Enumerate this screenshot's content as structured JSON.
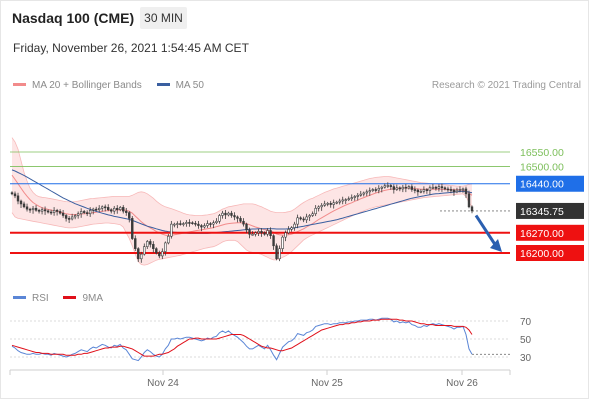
{
  "header": {
    "title": "Nasdaq 100 (CME)",
    "timeframe": "30 MIN",
    "datetime": "Friday, November 26, 2021 1:54:45 AM CET"
  },
  "legend_top": {
    "items": [
      {
        "label": "MA 20 + Bollinger Bands",
        "color": "#f28b8b"
      },
      {
        "label": "MA 50",
        "color": "#3a5fa0"
      }
    ],
    "credit": "Research © 2021 Trading Central"
  },
  "legend_bottom": {
    "items": [
      {
        "label": "RSI",
        "color": "#5b86d6"
      },
      {
        "label": "9MA",
        "color": "#e0101a"
      }
    ]
  },
  "colors": {
    "resistance_green": "#7cbf5a",
    "pivot_blue": "#1f6fe8",
    "current_price": "#333333",
    "support_red": "#ee1111",
    "candle": "#3a3a3a",
    "bollinger_fill": "#fde2e2",
    "arrow": "#2a5fb0"
  },
  "chart_data": [
    {
      "type": "candlestick",
      "title": "Nasdaq 100 (CME)",
      "ylim": [
        16140,
        16620
      ],
      "x_tick_labels": [
        "Nov 24",
        "Nov 25",
        "Nov 26"
      ],
      "levels": [
        {
          "label": "16550.00",
          "value": 16550,
          "kind": "resistance"
        },
        {
          "label": "16500.00",
          "value": 16500,
          "kind": "resistance"
        },
        {
          "label": "16440.00",
          "value": 16440,
          "kind": "pivot"
        },
        {
          "label": "16345.75",
          "value": 16345.75,
          "kind": "current"
        },
        {
          "label": "16270.00",
          "value": 16270,
          "kind": "support"
        },
        {
          "label": "16200.00",
          "value": 16200,
          "kind": "support"
        }
      ],
      "close": [
        16405,
        16398,
        16380,
        16370,
        16360,
        16352,
        16350,
        16355,
        16348,
        16345,
        16350,
        16346,
        16342,
        16340,
        16348,
        16344,
        16338,
        16330,
        16320,
        16318,
        16325,
        16330,
        16336,
        16344,
        16340,
        16336,
        16348,
        16352,
        16350,
        16355,
        16360,
        16358,
        16350,
        16345,
        16355,
        16350,
        16358,
        16345,
        16340,
        16320,
        16250,
        16215,
        16180,
        16196,
        16222,
        16240,
        16230,
        16215,
        16200,
        16190,
        16205,
        16235,
        16258,
        16300,
        16300,
        16302,
        16300,
        16302,
        16306,
        16305,
        16303,
        16300,
        16295,
        16290,
        16295,
        16302,
        16300,
        16305,
        16310,
        16330,
        16338,
        16332,
        16338,
        16330,
        16325,
        16320,
        16310,
        16300,
        16280,
        16265,
        16265,
        16270,
        16275,
        16270,
        16265,
        16278,
        16260,
        16225,
        16180,
        16215,
        16255,
        16270,
        16282,
        16288,
        16300,
        16322,
        16318,
        16315,
        16325,
        16330,
        16336,
        16355,
        16360,
        16365,
        16370,
        16372,
        16368,
        16374,
        16376,
        16380,
        16384,
        16385,
        16388,
        16392,
        16396,
        16400,
        16404,
        16408,
        16412,
        16416,
        16420,
        16418,
        16424,
        16428,
        16433,
        16434,
        16430,
        16420,
        16426,
        16422,
        16428,
        16425,
        16430,
        16420,
        16418,
        16412,
        16414,
        16420,
        16416,
        16426,
        16428,
        16424,
        16430,
        16426,
        16422,
        16420,
        16418,
        16412,
        16418,
        16420,
        16422,
        16405,
        16360,
        16345.75
      ],
      "ma20": [
        16470,
        16455,
        16440,
        16425,
        16410,
        16397,
        16385,
        16375,
        16368,
        16362,
        16357,
        16354,
        16351,
        16349,
        16346,
        16344,
        16342,
        16339,
        16336,
        16334,
        16333,
        16333,
        16334,
        16335,
        16336,
        16337,
        16339,
        16340,
        16341,
        16343,
        16344,
        16346,
        16347,
        16348,
        16349,
        16349,
        16350,
        16350,
        16348,
        16345,
        16338,
        16328,
        16318,
        16308,
        16300,
        16293,
        16287,
        16281,
        16275,
        16270,
        16265,
        16262,
        16260,
        16261,
        16263,
        16265,
        16267,
        16269,
        16271,
        16273,
        16275,
        16277,
        16279,
        16280,
        16282,
        16284,
        16286,
        16288,
        16291,
        16294,
        16297,
        16300,
        16302,
        16303,
        16304,
        16305,
        16305,
        16304,
        16302,
        16298,
        16294,
        16290,
        16287,
        16284,
        16281,
        16279,
        16276,
        16272,
        16266,
        16263,
        16262,
        16262,
        16263,
        16265,
        16269,
        16274,
        16279,
        16284,
        16290,
        16296,
        16302,
        16309,
        16316,
        16322,
        16328,
        16334,
        16340,
        16346,
        16351,
        16356,
        16361,
        16366,
        16370,
        16374,
        16379,
        16383,
        16388,
        16392,
        16396,
        16400,
        16404,
        16408,
        16411,
        16414,
        16417,
        16419,
        16421,
        16422,
        16423,
        16424,
        16425,
        16425,
        16425,
        16424,
        16423,
        16422,
        16421,
        16421,
        16421,
        16421,
        16421,
        16421,
        16421,
        16421,
        16420,
        16420,
        16420,
        16419,
        16419,
        16419,
        16418,
        16415,
        16408,
        16400
      ],
      "ma50": [
        16488,
        16484,
        16479,
        16474,
        16469,
        16463,
        16457,
        16451,
        16445,
        16439,
        16433,
        16427,
        16421,
        16415,
        16409,
        16403,
        16397,
        16391,
        16386,
        16381,
        16376,
        16371,
        16367,
        16363,
        16359,
        16355,
        16351,
        16348,
        16344,
        16341,
        16338,
        16335,
        16332,
        16330,
        16327,
        16325,
        16323,
        16321,
        16319,
        16316,
        16313,
        16309,
        16305,
        16301,
        16297,
        16293,
        16290,
        16287,
        16284,
        16281,
        16278,
        16276,
        16274,
        16273,
        16272,
        16271,
        16270,
        16269,
        16269,
        16268,
        16268,
        16268,
        16268,
        16268,
        16268,
        16268,
        16269,
        16270,
        16271,
        16272,
        16273,
        16274,
        16275,
        16276,
        16277,
        16278,
        16279,
        16280,
        16281,
        16282,
        16283,
        16283,
        16284,
        16284,
        16284,
        16284,
        16284,
        16284,
        16283,
        16283,
        16283,
        16283,
        16284,
        16285,
        16287,
        16289,
        16291,
        16293,
        16295,
        16297,
        16299,
        16301,
        16303,
        16305,
        16307,
        16309,
        16311,
        16313,
        16315,
        16318,
        16321,
        16324,
        16327,
        16330,
        16333,
        16336,
        16339,
        16342,
        16345,
        16348,
        16351,
        16354,
        16357,
        16360,
        16363,
        16366,
        16369,
        16372,
        16375,
        16378,
        16381,
        16384,
        16387,
        16390,
        16392,
        16394,
        16396,
        16398,
        16400,
        16402,
        16404,
        16405,
        16406,
        16407,
        16408,
        16409,
        16410,
        16411,
        16412,
        16413,
        16414,
        16413,
        16411,
        16409
      ],
      "bb_upper": [
        16600,
        16585,
        16560,
        16520,
        16480,
        16450,
        16425,
        16410,
        16400,
        16395,
        16393,
        16392,
        16390,
        16388,
        16386,
        16384,
        16382,
        16380,
        16378,
        16377,
        16377,
        16378,
        16380,
        16382,
        16384,
        16386,
        16388,
        16389,
        16390,
        16391,
        16392,
        16393,
        16394,
        16395,
        16396,
        16396,
        16396,
        16396,
        16396,
        16396,
        16400,
        16405,
        16410,
        16412,
        16410,
        16405,
        16398,
        16390,
        16380,
        16372,
        16365,
        16360,
        16357,
        16354,
        16350,
        16346,
        16342,
        16338,
        16334,
        16332,
        16331,
        16330,
        16330,
        16330,
        16331,
        16332,
        16334,
        16336,
        16340,
        16346,
        16352,
        16356,
        16360,
        16362,
        16364,
        16366,
        16368,
        16370,
        16370,
        16370,
        16370,
        16368,
        16364,
        16360,
        16355,
        16350,
        16345,
        16342,
        16340,
        16340,
        16340,
        16341,
        16343,
        16346,
        16352,
        16360,
        16368,
        16375,
        16381,
        16386,
        16390,
        16395,
        16400,
        16405,
        16410,
        16414,
        16418,
        16422,
        16425,
        16428,
        16431,
        16434,
        16437,
        16440,
        16443,
        16446,
        16449,
        16452,
        16455,
        16458,
        16460,
        16462,
        16463,
        16464,
        16465,
        16465,
        16464,
        16462,
        16460,
        16458,
        16456,
        16454,
        16452,
        16450,
        16448,
        16446,
        16444,
        16443,
        16442,
        16441,
        16440,
        16439,
        16438,
        16437,
        16436,
        16435,
        16434,
        16433,
        16432,
        16432,
        16432,
        16434,
        16438,
        16440
      ],
      "bb_lower": [
        16340,
        16325,
        16320,
        16318,
        16316,
        16314,
        16312,
        16310,
        16308,
        16306,
        16304,
        16302,
        16300,
        16298,
        16296,
        16294,
        16292,
        16290,
        16288,
        16287,
        16287,
        16288,
        16290,
        16292,
        16294,
        16296,
        16298,
        16300,
        16301,
        16302,
        16303,
        16304,
        16304,
        16303,
        16302,
        16300,
        16298,
        16290,
        16270,
        16250,
        16225,
        16195,
        16170,
        16160,
        16158,
        16160,
        16165,
        16170,
        16175,
        16178,
        16180,
        16182,
        16184,
        16186,
        16188,
        16190,
        16192,
        16195,
        16198,
        16201,
        16204,
        16207,
        16210,
        16213,
        16216,
        16218,
        16220,
        16222,
        16226,
        16232,
        16238,
        16242,
        16244,
        16244,
        16244,
        16240,
        16230,
        16220,
        16210,
        16205,
        16202,
        16200,
        16198,
        16195,
        16190,
        16185,
        16180,
        16176,
        16176,
        16180,
        16185,
        16190,
        16196,
        16205,
        16215,
        16225,
        16235,
        16245,
        16252,
        16258,
        16263,
        16268,
        16273,
        16278,
        16283,
        16288,
        16293,
        16298,
        16303,
        16308,
        16313,
        16318,
        16323,
        16328,
        16333,
        16338,
        16342,
        16346,
        16350,
        16354,
        16357,
        16360,
        16362,
        16364,
        16366,
        16368,
        16370,
        16372,
        16374,
        16376,
        16378,
        16380,
        16382,
        16384,
        16386,
        16388,
        16390,
        16392,
        16393,
        16394,
        16395,
        16396,
        16397,
        16398,
        16399,
        16400,
        16401,
        16402,
        16403,
        16404,
        16405,
        16396,
        16375,
        16360
      ],
      "forecast_arrow": {
        "from": 16330,
        "to": 16200
      }
    },
    {
      "type": "line",
      "title": "RSI",
      "ylim": [
        20,
        80
      ],
      "y_tick_labels": [
        "70",
        "50",
        "30"
      ],
      "y_ticks": [
        70,
        50,
        30
      ],
      "series": [
        {
          "name": "RSI",
          "values": [
            42,
            40,
            37,
            35,
            34,
            33,
            33,
            34,
            33,
            33,
            34,
            33,
            33,
            32,
            34,
            33,
            32,
            31,
            30,
            31,
            33,
            34,
            36,
            38,
            37,
            36,
            39,
            41,
            40,
            42,
            44,
            43,
            41,
            40,
            43,
            42,
            44,
            40,
            38,
            33,
            28,
            27,
            26,
            30,
            35,
            38,
            36,
            33,
            31,
            30,
            33,
            39,
            43,
            50,
            50,
            51,
            50,
            51,
            52,
            52,
            51,
            50,
            49,
            48,
            49,
            51,
            50,
            52,
            53,
            57,
            59,
            57,
            59,
            56,
            54,
            52,
            49,
            46,
            42,
            39,
            39,
            41,
            43,
            41,
            39,
            43,
            38,
            32,
            27,
            34,
            41,
            44,
            47,
            48,
            51,
            56,
            55,
            54,
            57,
            58,
            60,
            64,
            65,
            66,
            67,
            67,
            66,
            67,
            67,
            68,
            68,
            68,
            69,
            69,
            70,
            70,
            71,
            71,
            71,
            72,
            72,
            71,
            72,
            73,
            73,
            73,
            72,
            69,
            70,
            68,
            69,
            68,
            69,
            66,
            65,
            63,
            63,
            65,
            64,
            66,
            67,
            66,
            67,
            66,
            65,
            64,
            63,
            61,
            63,
            63,
            64,
            55,
            39,
            33
          ]
        },
        {
          "name": "9MA",
          "values": [
            43,
            42,
            41,
            40,
            39,
            38,
            37,
            36,
            35,
            35,
            34,
            34,
            34,
            33,
            33,
            33,
            33,
            33,
            32,
            32,
            32,
            32,
            33,
            33,
            34,
            34,
            35,
            36,
            37,
            38,
            39,
            40,
            40,
            41,
            41,
            41,
            42,
            42,
            41,
            40,
            39,
            37,
            35,
            33,
            31,
            31,
            31,
            31,
            32,
            33,
            33,
            34,
            35,
            37,
            39,
            42,
            44,
            46,
            48,
            50,
            50,
            51,
            51,
            50,
            50,
            50,
            50,
            50,
            50,
            51,
            52,
            53,
            54,
            55,
            55,
            55,
            55,
            54,
            52,
            50,
            48,
            46,
            44,
            42,
            41,
            40,
            40,
            39,
            38,
            37,
            37,
            38,
            39,
            40,
            42,
            44,
            46,
            48,
            50,
            52,
            54,
            56,
            58,
            60,
            61,
            62,
            63,
            64,
            65,
            66,
            66,
            67,
            67,
            68,
            68,
            69,
            69,
            70,
            70,
            70,
            71,
            71,
            71,
            72,
            72,
            72,
            72,
            72,
            72,
            71,
            71,
            70,
            70,
            70,
            69,
            68,
            67,
            67,
            66,
            66,
            66,
            65,
            65,
            65,
            65,
            65,
            65,
            64,
            64,
            64,
            64,
            63,
            60,
            55
          ]
        }
      ]
    }
  ]
}
